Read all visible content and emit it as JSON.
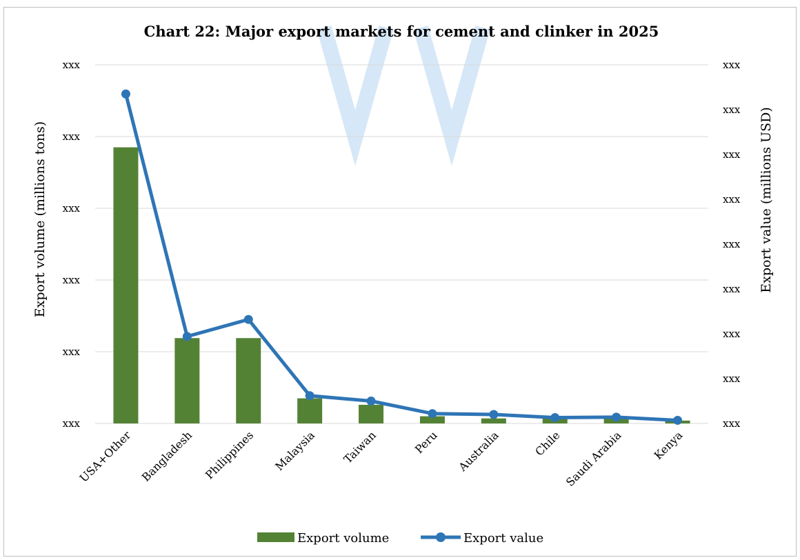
{
  "chart_data": {
    "type": "bar+line",
    "title": "Chart 22: Major export markets for cement and clinker in 2025",
    "categories": [
      "USA+Other",
      "Bangladesh",
      "Philippines",
      "Malaysia",
      "Taiwan",
      "Peru",
      "Australia",
      "Chile",
      "Saudi Arabia",
      "Kenya"
    ],
    "series": [
      {
        "name": "Export volume",
        "kind": "bar",
        "axis": "left",
        "color": "#548235",
        "values": [
          3.85,
          1.19,
          1.19,
          0.35,
          0.26,
          0.1,
          0.07,
          0.07,
          0.07,
          0.04
        ]
      },
      {
        "name": "Export value",
        "kind": "line",
        "axis": "right",
        "color": "#2e75b6",
        "values": [
          7.35,
          1.94,
          2.32,
          0.62,
          0.5,
          0.22,
          0.2,
          0.13,
          0.14,
          0.07
        ]
      }
    ],
    "ylabel": "Export volume (millions tons)",
    "y2label": "Export value (millions USD)",
    "ylim": [
      0,
      5
    ],
    "y2lim": [
      0,
      8
    ],
    "yticks": [
      "xxx",
      "xxx",
      "xxx",
      "xxx",
      "xxx",
      "xxx"
    ],
    "y2ticks": [
      "xxx",
      "xxx",
      "xxx",
      "xxx",
      "xxx",
      "xxx",
      "xxx",
      "xxx",
      "xxx"
    ],
    "grid": true,
    "legend_position": "bottom"
  }
}
